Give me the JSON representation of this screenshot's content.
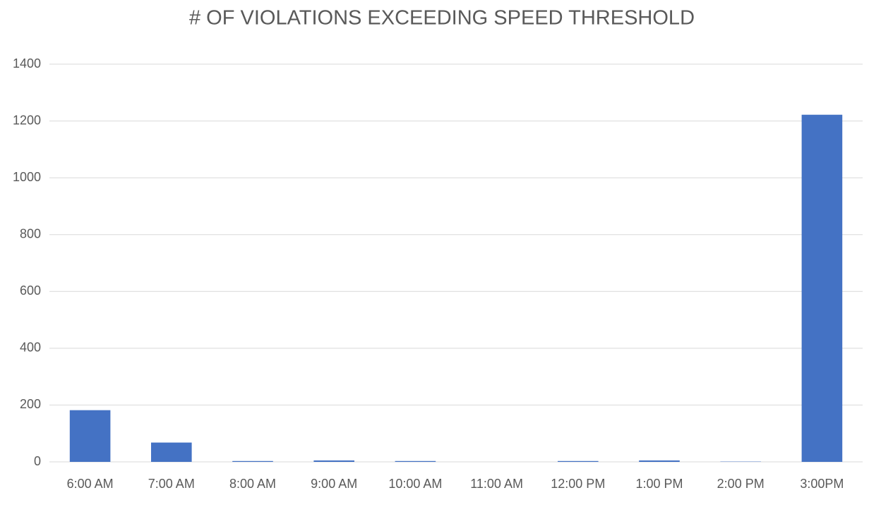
{
  "chart_data": {
    "type": "bar",
    "title": "# OF VIOLATIONS EXCEEDING SPEED THRESHOLD",
    "categories": [
      "6:00 AM",
      "7:00 AM",
      "8:00 AM",
      "9:00 AM",
      "10:00 AM",
      "11:00 AM",
      "12:00 PM",
      "1:00 PM",
      "2:00 PM",
      "3:00PM"
    ],
    "values": [
      182,
      68,
      3,
      5,
      3,
      0,
      3,
      5,
      1,
      1222
    ],
    "color": "#4472c4",
    "ylim": [
      0,
      1400
    ],
    "yticks": [
      0,
      200,
      400,
      600,
      800,
      1000,
      1200,
      1400
    ],
    "grid": true
  }
}
